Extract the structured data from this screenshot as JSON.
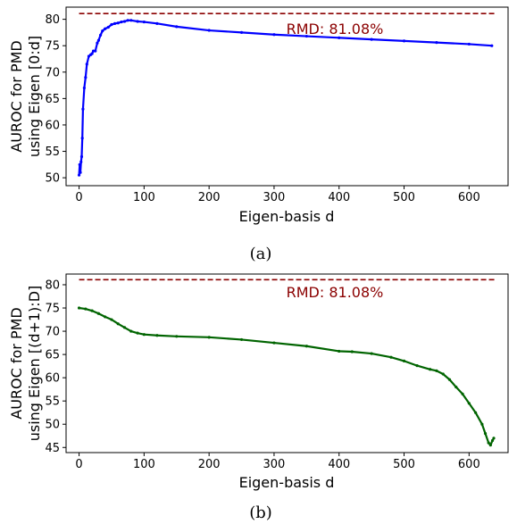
{
  "chart_data": [
    {
      "type": "line",
      "caption": "(a)",
      "xlabel": "Eigen-basis d",
      "ylabel": [
        "AUROC for PMD",
        "using Eigen [0:d]"
      ],
      "xlim": [
        -20,
        660
      ],
      "ylim": [
        48.5,
        82.3
      ],
      "xticks": [
        0,
        100,
        200,
        300,
        400,
        500,
        600
      ],
      "yticks": [
        50,
        55,
        60,
        65,
        70,
        75,
        80
      ],
      "grid": false,
      "series": [
        {
          "color": "#0000ff",
          "marker": "dot",
          "x": [
            0,
            1,
            2,
            3,
            4,
            5,
            6,
            8,
            10,
            12,
            15,
            18,
            20,
            22,
            25,
            28,
            30,
            33,
            36,
            40,
            45,
            50,
            55,
            60,
            65,
            70,
            75,
            80,
            90,
            100,
            120,
            150,
            200,
            250,
            300,
            350,
            400,
            450,
            500,
            550,
            600,
            635
          ],
          "y": [
            50.5,
            52.5,
            51.0,
            53.0,
            54.0,
            57.5,
            63.0,
            67.0,
            69.0,
            71.5,
            73.0,
            73.3,
            73.5,
            74.0,
            74.0,
            75.5,
            76.0,
            77.0,
            77.8,
            78.2,
            78.5,
            79.0,
            79.2,
            79.3,
            79.5,
            79.6,
            79.8,
            79.8,
            79.6,
            79.5,
            79.2,
            78.6,
            77.9,
            77.5,
            77.1,
            76.8,
            76.5,
            76.2,
            75.9,
            75.6,
            75.3,
            75.0
          ]
        }
      ],
      "reference_line": {
        "y": 81.08,
        "label": "RMD: 81.08%",
        "color": "#8b0000",
        "style": "dashed"
      }
    },
    {
      "type": "line",
      "caption": "(b)",
      "xlabel": "Eigen-basis d",
      "ylabel": [
        "AUROC for PMD",
        "using Eigen [(d+1):D]"
      ],
      "xlim": [
        -20,
        660
      ],
      "ylim": [
        43.9,
        82.3
      ],
      "xticks": [
        0,
        100,
        200,
        300,
        400,
        500,
        600
      ],
      "yticks": [
        45,
        50,
        55,
        60,
        65,
        70,
        75,
        80
      ],
      "grid": false,
      "series": [
        {
          "color": "#006400",
          "marker": "dot",
          "x": [
            0,
            10,
            20,
            30,
            40,
            50,
            60,
            70,
            80,
            90,
            100,
            120,
            150,
            200,
            250,
            300,
            350,
            400,
            420,
            450,
            480,
            500,
            520,
            540,
            550,
            560,
            570,
            580,
            590,
            600,
            610,
            620,
            625,
            630,
            633,
            636,
            638
          ],
          "y": [
            75.0,
            74.8,
            74.4,
            73.8,
            73.1,
            72.5,
            71.6,
            70.8,
            70.0,
            69.6,
            69.3,
            69.1,
            68.9,
            68.7,
            68.2,
            67.5,
            66.8,
            65.7,
            65.6,
            65.2,
            64.4,
            63.6,
            62.6,
            61.8,
            61.5,
            60.8,
            59.6,
            58.0,
            56.5,
            54.5,
            52.5,
            50.0,
            48.0,
            46.0,
            45.5,
            46.5,
            47.0
          ]
        }
      ],
      "reference_line": {
        "y": 81.08,
        "label": "RMD: 81.08%",
        "color": "#8b0000",
        "style": "dashed"
      }
    }
  ]
}
